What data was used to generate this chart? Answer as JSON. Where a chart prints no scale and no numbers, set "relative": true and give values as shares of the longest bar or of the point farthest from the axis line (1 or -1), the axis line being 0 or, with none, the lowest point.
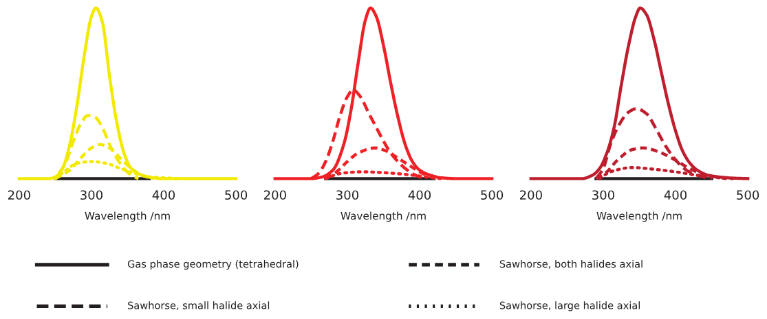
{
  "chart_data": [
    {
      "type": "line",
      "relative": true,
      "xlim": [
        200,
        500
      ],
      "xticks": [
        200,
        300,
        400,
        500
      ],
      "xlabel": "Wavelength /nm",
      "tick_labels": "x",
      "grid": false,
      "series": [
        {
          "color": "#231f20",
          "line_style": "solid",
          "x": [
            250,
            380
          ],
          "values": [
            0,
            0
          ]
        },
        {
          "color": "#f2ea00",
          "line_style": "dashed",
          "x": [
            255,
            265,
            275,
            285,
            295,
            305,
            315,
            325,
            335,
            345,
            355,
            365
          ],
          "values": [
            0.03,
            0.1,
            0.22,
            0.32,
            0.37,
            0.36,
            0.3,
            0.2,
            0.12,
            0.06,
            0.02,
            0
          ]
        },
        {
          "color": "#f2ea00",
          "line_style": "dashed",
          "x": [
            250,
            270,
            285,
            300,
            312,
            325,
            340,
            355,
            370,
            385
          ],
          "values": [
            0,
            0.05,
            0.12,
            0.18,
            0.2,
            0.18,
            0.12,
            0.06,
            0.02,
            0
          ]
        },
        {
          "color": "#f2ea00",
          "line_style": "dotted",
          "x": [
            250,
            265,
            280,
            300,
            320,
            340,
            360,
            380,
            400,
            420
          ],
          "values": [
            0,
            0.05,
            0.09,
            0.1,
            0.09,
            0.06,
            0.03,
            0.01,
            0.005,
            0
          ]
        },
        {
          "color": "#f2ea00",
          "line_style": "solid",
          "x": [
            200,
            240,
            250,
            260,
            270,
            280,
            290,
            300,
            306,
            315,
            325,
            335,
            345,
            355,
            370,
            385,
            400,
            500
          ],
          "values": [
            0,
            0,
            0.01,
            0.06,
            0.2,
            0.43,
            0.72,
            0.95,
            1,
            0.92,
            0.6,
            0.33,
            0.15,
            0.06,
            0.02,
            0.005,
            0,
            0
          ]
        }
      ]
    },
    {
      "type": "line",
      "relative": true,
      "xlim": [
        200,
        500
      ],
      "xticks": [
        200,
        300,
        400,
        500
      ],
      "xlabel": "Wavelength /nm",
      "tick_labels": "x",
      "grid": false,
      "series": [
        {
          "color": "#231f20",
          "line_style": "solid",
          "x": [
            270,
            420
          ],
          "values": [
            0,
            0
          ]
        },
        {
          "color": "#ee2127",
          "line_style": "dashed",
          "x": [
            250,
            260,
            270,
            280,
            290,
            300,
            308,
            318,
            330,
            340,
            350,
            360,
            370,
            380,
            390,
            400,
            410
          ],
          "values": [
            0,
            0.03,
            0.1,
            0.22,
            0.37,
            0.48,
            0.52,
            0.48,
            0.38,
            0.3,
            0.22,
            0.15,
            0.1,
            0.06,
            0.03,
            0.01,
            0
          ]
        },
        {
          "color": "#ee2127",
          "line_style": "dashed",
          "x": [
            270,
            285,
            300,
            315,
            338,
            355,
            370,
            385,
            400,
            415,
            425
          ],
          "values": [
            0,
            0.04,
            0.1,
            0.15,
            0.18,
            0.16,
            0.12,
            0.08,
            0.04,
            0.01,
            0
          ]
        },
        {
          "color": "#ee2127",
          "line_style": "dotted",
          "x": [
            270,
            290,
            320,
            350,
            380,
            410,
            430
          ],
          "values": [
            0,
            0.03,
            0.04,
            0.035,
            0.025,
            0.01,
            0
          ]
        },
        {
          "color": "#ee2127",
          "line_style": "solid",
          "x": [
            200,
            250,
            265,
            280,
            295,
            305,
            315,
            325,
            332,
            340,
            350,
            360,
            370,
            380,
            390,
            400,
            415,
            430,
            450,
            500
          ],
          "values": [
            0,
            0,
            0.01,
            0.05,
            0.2,
            0.4,
            0.68,
            0.93,
            1,
            0.95,
            0.78,
            0.56,
            0.36,
            0.2,
            0.1,
            0.05,
            0.02,
            0.005,
            0,
            0
          ]
        }
      ]
    },
    {
      "type": "line",
      "relative": true,
      "xlim": [
        200,
        500
      ],
      "xticks": [
        200,
        300,
        400,
        500
      ],
      "xlabel": "Wavelength /nm",
      "tick_labels": "x",
      "grid": false,
      "series": [
        {
          "color": "#231f20",
          "line_style": "solid",
          "x": [
            290,
            450
          ],
          "values": [
            0,
            0
          ]
        },
        {
          "color": "#be1e2d",
          "line_style": "dashed",
          "x": [
            290,
            300,
            310,
            320,
            335,
            346,
            360,
            372,
            385,
            400,
            415,
            430,
            450
          ],
          "values": [
            0,
            0.06,
            0.2,
            0.3,
            0.39,
            0.41,
            0.38,
            0.3,
            0.2,
            0.11,
            0.05,
            0.02,
            0
          ]
        },
        {
          "color": "#be1e2d",
          "line_style": "dashed",
          "x": [
            290,
            305,
            320,
            340,
            356,
            375,
            395,
            415,
            435,
            455,
            470
          ],
          "values": [
            0,
            0.04,
            0.11,
            0.17,
            0.18,
            0.16,
            0.12,
            0.07,
            0.03,
            0.01,
            0
          ]
        },
        {
          "color": "#be1e2d",
          "line_style": "dotted",
          "x": [
            295,
            310,
            340,
            370,
            400,
            430,
            460,
            480
          ],
          "values": [
            0,
            0.04,
            0.065,
            0.055,
            0.04,
            0.02,
            0.005,
            0
          ]
        },
        {
          "color": "#be1e2d",
          "line_style": "solid",
          "x": [
            200,
            270,
            285,
            295,
            305,
            315,
            325,
            335,
            345,
            351,
            360,
            370,
            380,
            390,
            400,
            410,
            420,
            430,
            445,
            460,
            480,
            500
          ],
          "values": [
            0,
            0,
            0.02,
            0.06,
            0.15,
            0.3,
            0.55,
            0.78,
            0.95,
            1,
            0.96,
            0.82,
            0.63,
            0.44,
            0.28,
            0.16,
            0.09,
            0.05,
            0.02,
            0.01,
            0.003,
            0
          ]
        }
      ]
    },
    {
      "type": "other",
      "annotations": [
        "Gas phase geometry (tetrahedral)",
        "Sawhorse, both halides axial",
        "Sawhorse, small halide axial",
        "Sawhorse, large halide axial"
      ]
    }
  ]
}
